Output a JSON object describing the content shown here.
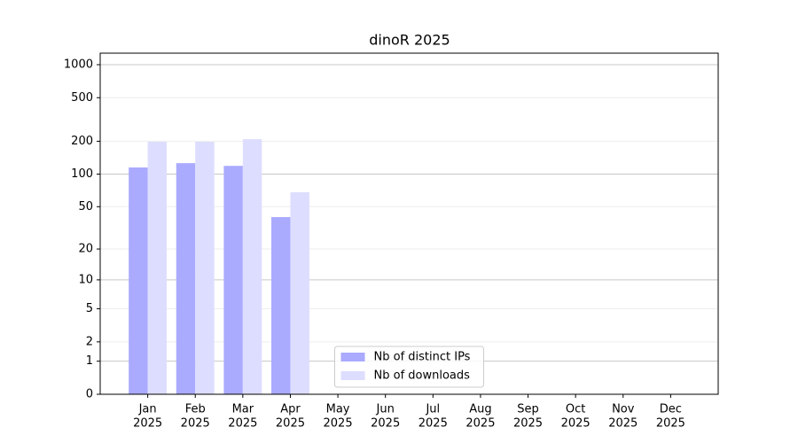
{
  "chart_data": {
    "type": "bar",
    "title": "dinoR 2025",
    "categories": [
      {
        "month": "Jan",
        "year": "2025"
      },
      {
        "month": "Feb",
        "year": "2025"
      },
      {
        "month": "Mar",
        "year": "2025"
      },
      {
        "month": "Apr",
        "year": "2025"
      },
      {
        "month": "May",
        "year": "2025"
      },
      {
        "month": "Jun",
        "year": "2025"
      },
      {
        "month": "Jul",
        "year": "2025"
      },
      {
        "month": "Aug",
        "year": "2025"
      },
      {
        "month": "Sep",
        "year": "2025"
      },
      {
        "month": "Oct",
        "year": "2025"
      },
      {
        "month": "Nov",
        "year": "2025"
      },
      {
        "month": "Dec",
        "year": "2025"
      }
    ],
    "series": [
      {
        "name": "Nb of distinct IPs",
        "color": "#aaaaff",
        "values": [
          115,
          126,
          119,
          40,
          null,
          null,
          null,
          null,
          null,
          null,
          null,
          null
        ]
      },
      {
        "name": "Nb of downloads",
        "color": "#ddddff",
        "values": [
          198,
          198,
          209,
          68,
          null,
          null,
          null,
          null,
          null,
          null,
          null,
          null
        ]
      }
    ],
    "yscale": "log1p",
    "ylim": [
      0,
      1273
    ],
    "yticks": [
      0,
      1,
      2,
      5,
      10,
      20,
      50,
      100,
      200,
      500,
      1000
    ],
    "grid": true,
    "legend": "lower center"
  }
}
